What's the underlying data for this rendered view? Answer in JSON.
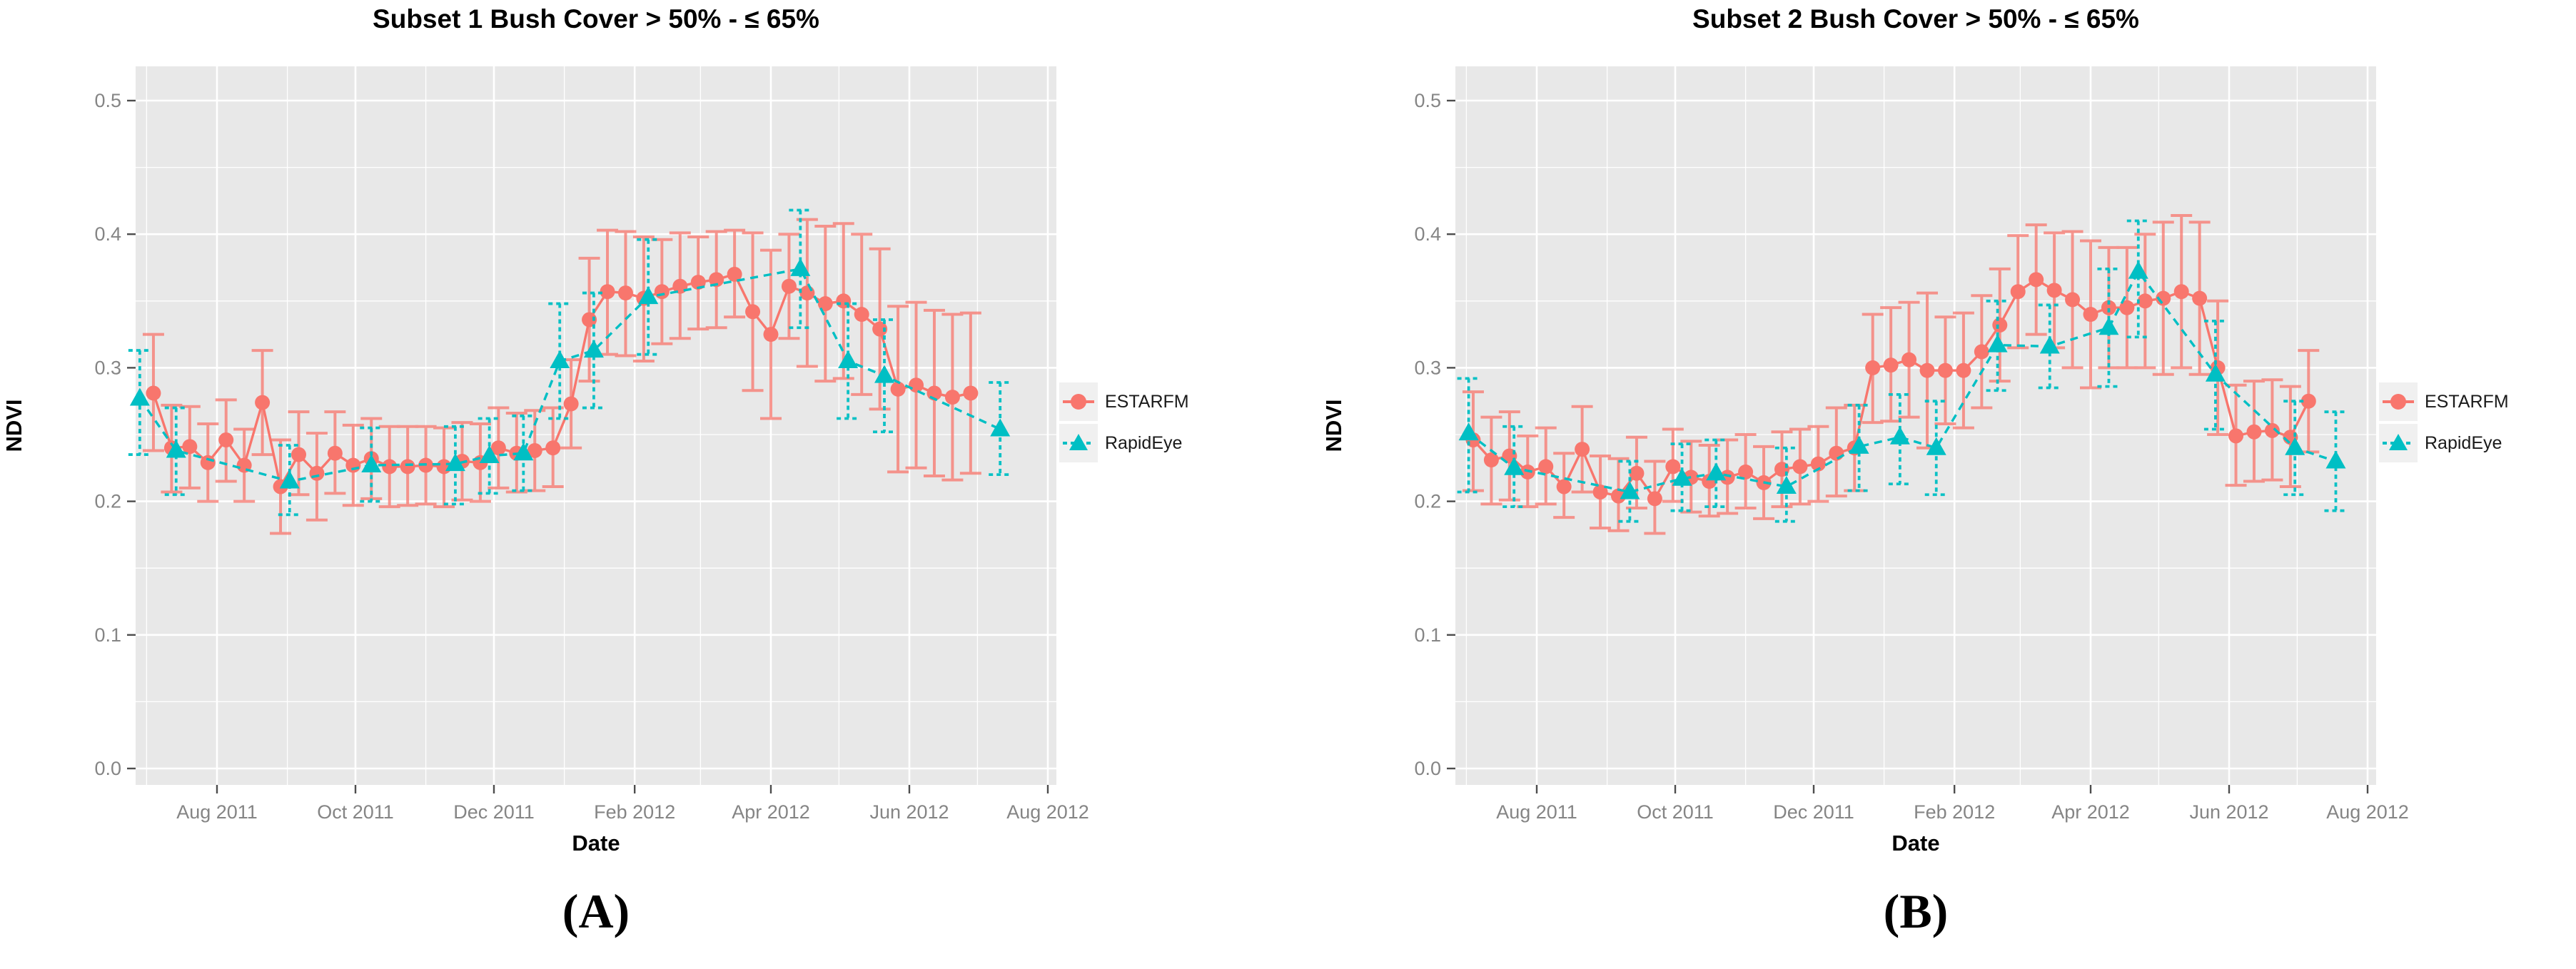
{
  "colors": {
    "estarfm": "#F8766D",
    "rapideye": "#00BFC4",
    "panel_background": "#E8E8E8",
    "gridline": "#FFFFFF",
    "tick_text": "#858585",
    "axis_text": "#000000",
    "legend_key_background": "#F0F0F0"
  },
  "chart_data": [
    {
      "type": "line",
      "title": "Subset 1 Bush Cover > 50% - ≤ 65%",
      "panel_label": "(A)",
      "xlabel": "Date",
      "ylabel": "NDVI",
      "ylim": [
        0.0,
        0.5
      ],
      "grid": true,
      "legend_position": "right",
      "x_ticks": [
        "2011-08-01",
        "2011-10-01",
        "2011-12-01",
        "2012-02-01",
        "2012-04-01",
        "2012-06-01",
        "2012-08-01"
      ],
      "x_tick_labels": [
        "Aug 2011",
        "Oct 2011",
        "Dec 2011",
        "Feb 2012",
        "Apr 2012",
        "Jun 2012",
        "Aug 2012"
      ],
      "x_minor_dates": [
        "2011-07-01",
        "2011-09-01",
        "2011-11-01",
        "2012-01-01",
        "2012-03-01",
        "2012-05-01",
        "2012-07-01"
      ],
      "y_ticks": [
        0.0,
        0.1,
        0.2,
        0.3,
        0.4,
        0.5
      ],
      "y_tick_labels": [
        "0.0",
        "0.1",
        "0.2",
        "0.3",
        "0.4",
        "0.5"
      ],
      "y_minor_ticks": [
        0.05,
        0.15,
        0.25,
        0.35,
        0.45
      ],
      "series": [
        {
          "name": "ESTARFM",
          "marker": "circle",
          "line": "solid",
          "color": "#F8766D",
          "points": [
            [
              "2011-07-04",
              0.281,
              0.238,
              0.325
            ],
            [
              "2011-07-12",
              0.24,
              0.207,
              0.272
            ],
            [
              "2011-07-20",
              0.241,
              0.21,
              0.271
            ],
            [
              "2011-07-28",
              0.229,
              0.2,
              0.258
            ],
            [
              "2011-08-05",
              0.246,
              0.215,
              0.276
            ],
            [
              "2011-08-13",
              0.227,
              0.2,
              0.254
            ],
            [
              "2011-08-21",
              0.274,
              0.235,
              0.313
            ],
            [
              "2011-08-29",
              0.211,
              0.176,
              0.246
            ],
            [
              "2011-09-06",
              0.235,
              0.205,
              0.267
            ],
            [
              "2011-09-14",
              0.221,
              0.186,
              0.251
            ],
            [
              "2011-09-22",
              0.236,
              0.206,
              0.267
            ],
            [
              "2011-09-30",
              0.227,
              0.197,
              0.257
            ],
            [
              "2011-10-08",
              0.232,
              0.202,
              0.262
            ],
            [
              "2011-10-16",
              0.226,
              0.196,
              0.256
            ],
            [
              "2011-10-24",
              0.226,
              0.197,
              0.256
            ],
            [
              "2011-11-01",
              0.227,
              0.198,
              0.256
            ],
            [
              "2011-11-09",
              0.226,
              0.196,
              0.255
            ],
            [
              "2011-11-17",
              0.23,
              0.201,
              0.259
            ],
            [
              "2011-11-25",
              0.229,
              0.2,
              0.258
            ],
            [
              "2011-12-03",
              0.24,
              0.21,
              0.27
            ],
            [
              "2011-12-11",
              0.236,
              0.207,
              0.266
            ],
            [
              "2011-12-19",
              0.238,
              0.208,
              0.268
            ],
            [
              "2011-12-27",
              0.24,
              0.211,
              0.27
            ],
            [
              "2012-01-04",
              0.273,
              0.24,
              0.306
            ],
            [
              "2012-01-12",
              0.336,
              0.29,
              0.382
            ],
            [
              "2012-01-20",
              0.357,
              0.31,
              0.403
            ],
            [
              "2012-01-28",
              0.356,
              0.309,
              0.402
            ],
            [
              "2012-02-05",
              0.352,
              0.305,
              0.398
            ],
            [
              "2012-02-13",
              0.357,
              0.318,
              0.396
            ],
            [
              "2012-02-21",
              0.361,
              0.322,
              0.401
            ],
            [
              "2012-02-29",
              0.364,
              0.329,
              0.398
            ],
            [
              "2012-03-08",
              0.366,
              0.33,
              0.402
            ],
            [
              "2012-03-16",
              0.37,
              0.338,
              0.403
            ],
            [
              "2012-03-24",
              0.342,
              0.283,
              0.401
            ],
            [
              "2012-04-01",
              0.325,
              0.262,
              0.388
            ],
            [
              "2012-04-09",
              0.361,
              0.322,
              0.4
            ],
            [
              "2012-04-17",
              0.356,
              0.301,
              0.411
            ],
            [
              "2012-04-25",
              0.348,
              0.29,
              0.406
            ],
            [
              "2012-05-03",
              0.35,
              0.292,
              0.408
            ],
            [
              "2012-05-11",
              0.34,
              0.28,
              0.4
            ],
            [
              "2012-05-19",
              0.329,
              0.269,
              0.389
            ],
            [
              "2012-05-27",
              0.284,
              0.222,
              0.346
            ],
            [
              "2012-06-04",
              0.287,
              0.225,
              0.349
            ],
            [
              "2012-06-12",
              0.281,
              0.219,
              0.343
            ],
            [
              "2012-06-20",
              0.278,
              0.216,
              0.34
            ],
            [
              "2012-06-28",
              0.281,
              0.221,
              0.341
            ]
          ]
        },
        {
          "name": "RapidEye",
          "marker": "triangle",
          "line": "dashed",
          "color": "#00BFC4",
          "points": [
            [
              "2011-06-28",
              0.277,
              0.235,
              0.313
            ],
            [
              "2011-07-14",
              0.238,
              0.205,
              0.27
            ],
            [
              "2011-09-02",
              0.215,
              0.19,
              0.242
            ],
            [
              "2011-10-08",
              0.227,
              0.2,
              0.255
            ],
            [
              "2011-11-14",
              0.228,
              0.198,
              0.256
            ],
            [
              "2011-11-29",
              0.234,
              0.206,
              0.262
            ],
            [
              "2011-12-14",
              0.236,
              0.208,
              0.264
            ],
            [
              "2011-12-30",
              0.305,
              0.262,
              0.348
            ],
            [
              "2012-01-14",
              0.313,
              0.27,
              0.356
            ],
            [
              "2012-02-07",
              0.353,
              0.31,
              0.396
            ],
            [
              "2012-04-14",
              0.374,
              0.33,
              0.418
            ],
            [
              "2012-05-05",
              0.305,
              0.262,
              0.348
            ],
            [
              "2012-05-21",
              0.294,
              0.252,
              0.336
            ],
            [
              "2012-07-11",
              0.254,
              0.22,
              0.289
            ]
          ]
        }
      ]
    },
    {
      "type": "line",
      "title": "Subset 2 Bush Cover > 50% - ≤ 65%",
      "panel_label": "(B)",
      "xlabel": "Date",
      "ylabel": "NDVI",
      "ylim": [
        0.0,
        0.5
      ],
      "grid": true,
      "legend_position": "right",
      "x_ticks": [
        "2011-08-01",
        "2011-10-01",
        "2011-12-01",
        "2012-02-01",
        "2012-04-01",
        "2012-06-01",
        "2012-08-01"
      ],
      "x_tick_labels": [
        "Aug 2011",
        "Oct 2011",
        "Dec 2011",
        "Feb 2012",
        "Apr 2012",
        "Jun 2012",
        "Aug 2012"
      ],
      "x_minor_dates": [
        "2011-07-01",
        "2011-09-01",
        "2011-11-01",
        "2012-01-01",
        "2012-03-01",
        "2012-05-01",
        "2012-07-01"
      ],
      "y_ticks": [
        0.0,
        0.1,
        0.2,
        0.3,
        0.4,
        0.5
      ],
      "y_tick_labels": [
        "0.0",
        "0.1",
        "0.2",
        "0.3",
        "0.4",
        "0.5"
      ],
      "y_minor_ticks": [
        0.05,
        0.15,
        0.25,
        0.35,
        0.45
      ],
      "series": [
        {
          "name": "ESTARFM",
          "marker": "circle",
          "line": "solid",
          "color": "#F8766D",
          "points": [
            [
              "2011-07-04",
              0.246,
              0.208,
              0.282
            ],
            [
              "2011-07-12",
              0.231,
              0.198,
              0.263
            ],
            [
              "2011-07-20",
              0.234,
              0.201,
              0.267
            ],
            [
              "2011-07-28",
              0.222,
              0.196,
              0.249
            ],
            [
              "2011-08-05",
              0.226,
              0.198,
              0.255
            ],
            [
              "2011-08-13",
              0.211,
              0.188,
              0.236
            ],
            [
              "2011-08-21",
              0.239,
              0.207,
              0.271
            ],
            [
              "2011-08-29",
              0.207,
              0.18,
              0.234
            ],
            [
              "2011-09-06",
              0.204,
              0.178,
              0.232
            ],
            [
              "2011-09-14",
              0.221,
              0.195,
              0.248
            ],
            [
              "2011-09-22",
              0.202,
              0.176,
              0.23
            ],
            [
              "2011-09-30",
              0.226,
              0.2,
              0.254
            ],
            [
              "2011-10-08",
              0.218,
              0.192,
              0.245
            ],
            [
              "2011-10-16",
              0.215,
              0.189,
              0.242
            ],
            [
              "2011-10-24",
              0.218,
              0.191,
              0.246
            ],
            [
              "2011-11-01",
              0.222,
              0.195,
              0.25
            ],
            [
              "2011-11-09",
              0.214,
              0.187,
              0.241
            ],
            [
              "2011-11-17",
              0.224,
              0.196,
              0.252
            ],
            [
              "2011-11-25",
              0.226,
              0.198,
              0.254
            ],
            [
              "2011-12-03",
              0.228,
              0.2,
              0.256
            ],
            [
              "2011-12-11",
              0.236,
              0.204,
              0.27
            ],
            [
              "2011-12-19",
              0.24,
              0.208,
              0.272
            ],
            [
              "2011-12-27",
              0.3,
              0.259,
              0.34
            ],
            [
              "2012-01-04",
              0.302,
              0.26,
              0.345
            ],
            [
              "2012-01-12",
              0.306,
              0.263,
              0.349
            ],
            [
              "2012-01-20",
              0.298,
              0.24,
              0.356
            ],
            [
              "2012-01-28",
              0.298,
              0.258,
              0.338
            ],
            [
              "2012-02-05",
              0.298,
              0.255,
              0.341
            ],
            [
              "2012-02-13",
              0.312,
              0.27,
              0.354
            ],
            [
              "2012-02-21",
              0.332,
              0.29,
              0.374
            ],
            [
              "2012-02-29",
              0.357,
              0.315,
              0.399
            ],
            [
              "2012-03-08",
              0.366,
              0.325,
              0.407
            ],
            [
              "2012-03-16",
              0.358,
              0.315,
              0.401
            ],
            [
              "2012-03-24",
              0.351,
              0.3,
              0.402
            ],
            [
              "2012-04-01",
              0.34,
              0.285,
              0.395
            ],
            [
              "2012-04-09",
              0.345,
              0.3,
              0.39
            ],
            [
              "2012-04-17",
              0.345,
              0.3,
              0.39
            ],
            [
              "2012-04-25",
              0.35,
              0.3,
              0.4
            ],
            [
              "2012-05-03",
              0.352,
              0.295,
              0.409
            ],
            [
              "2012-05-11",
              0.357,
              0.3,
              0.414
            ],
            [
              "2012-05-19",
              0.352,
              0.295,
              0.409
            ],
            [
              "2012-05-27",
              0.3,
              0.25,
              0.35
            ],
            [
              "2012-06-04",
              0.249,
              0.212,
              0.287
            ],
            [
              "2012-06-12",
              0.252,
              0.215,
              0.29
            ],
            [
              "2012-06-20",
              0.253,
              0.216,
              0.291
            ],
            [
              "2012-06-28",
              0.248,
              0.211,
              0.286
            ],
            [
              "2012-07-06",
              0.275,
              0.237,
              0.313
            ]
          ]
        },
        {
          "name": "RapidEye",
          "marker": "triangle",
          "line": "dashed",
          "color": "#00BFC4",
          "points": [
            [
              "2011-07-02",
              0.251,
              0.207,
              0.292
            ],
            [
              "2011-07-22",
              0.225,
              0.196,
              0.256
            ],
            [
              "2011-09-11",
              0.207,
              0.185,
              0.23
            ],
            [
              "2011-10-04",
              0.217,
              0.193,
              0.243
            ],
            [
              "2011-10-19",
              0.221,
              0.196,
              0.246
            ],
            [
              "2011-11-19",
              0.211,
              0.185,
              0.24
            ],
            [
              "2011-12-21",
              0.241,
              0.208,
              0.272
            ],
            [
              "2012-01-08",
              0.248,
              0.213,
              0.28
            ],
            [
              "2012-01-24",
              0.24,
              0.205,
              0.275
            ],
            [
              "2012-02-20",
              0.317,
              0.283,
              0.35
            ],
            [
              "2012-03-14",
              0.316,
              0.285,
              0.347
            ],
            [
              "2012-04-09",
              0.33,
              0.286,
              0.374
            ],
            [
              "2012-04-22",
              0.372,
              0.323,
              0.41
            ],
            [
              "2012-05-26",
              0.295,
              0.254,
              0.335
            ],
            [
              "2012-06-30",
              0.24,
              0.205,
              0.275
            ],
            [
              "2012-07-18",
              0.23,
              0.193,
              0.267
            ]
          ]
        }
      ]
    }
  ]
}
